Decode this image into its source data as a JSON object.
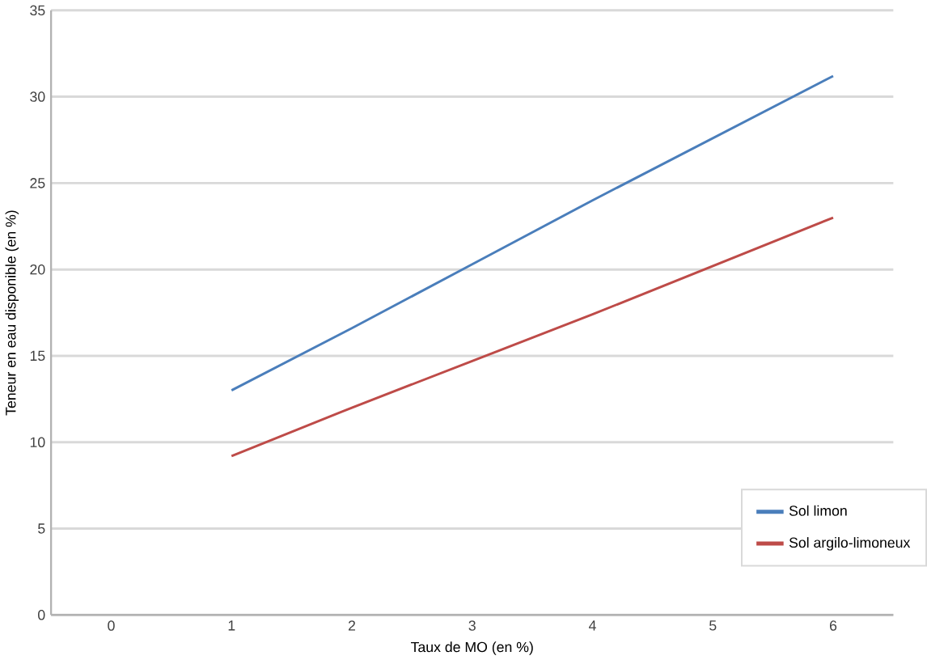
{
  "chart_data": {
    "type": "line",
    "xlabel": "Taux de MO (en %)",
    "ylabel": "Teneur en eau disponible (en %)",
    "categories": [
      "0",
      "1",
      "2",
      "3",
      "4",
      "5",
      "6"
    ],
    "series": [
      {
        "name": "Sol limon",
        "color": "#4a7ebb",
        "values": [
          null,
          13,
          16.6,
          20.3,
          24,
          27.6,
          31.2
        ]
      },
      {
        "name": "Sol argilo-limoneux",
        "color": "#be4b48",
        "values": [
          null,
          9.2,
          12,
          14.7,
          17.4,
          20.2,
          23
        ]
      }
    ],
    "ylim": [
      0,
      35
    ],
    "yticks": [
      0,
      5,
      10,
      15,
      20,
      25,
      30,
      35
    ],
    "grid": "y",
    "legend": "bottom right",
    "marker": "none",
    "line_style": "solid"
  }
}
